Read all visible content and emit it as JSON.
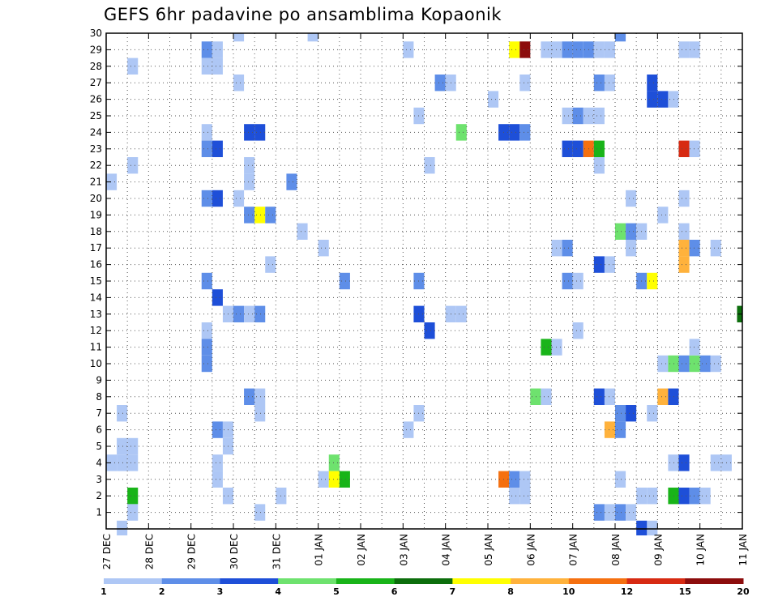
{
  "chart_data": {
    "type": "heatmap",
    "title": "GEFS 6hr padavine po ansamblima Kopaonik",
    "x_tick_labels": [
      "27 DEC",
      "28 DEC",
      "29 DEC",
      "30 DEC",
      "31 DEC",
      "01 JAN",
      "02 JAN",
      "03 JAN",
      "04 JAN",
      "05 JAN",
      "06 JAN",
      "07 JAN",
      "08 JAN",
      "09 JAN",
      "10 JAN",
      "11 JAN"
    ],
    "y_tick_labels": [
      "1",
      "2",
      "3",
      "4",
      "5",
      "6",
      "7",
      "8",
      "9",
      "10",
      "11",
      "12",
      "13",
      "14",
      "15",
      "16",
      "17",
      "18",
      "19",
      "20",
      "21",
      "22",
      "23",
      "24",
      "25",
      "26",
      "27",
      "28",
      "29",
      "30"
    ],
    "x_range_steps": [
      0,
      60
    ],
    "y_range_members": [
      0,
      30
    ],
    "colorbar": {
      "labels": [
        "1",
        "2",
        "3",
        "4",
        "5",
        "6",
        "7",
        "8",
        "10",
        "12",
        "15",
        "20"
      ],
      "colors": [
        "#aec7f5",
        "#5e8ee8",
        "#1e4fd8",
        "#6ee26e",
        "#19b419",
        "#0c6e0c",
        "#ffff00",
        "#ffb23c",
        "#f57010",
        "#d72a12",
        "#8c0c0c"
      ]
    },
    "cells": [
      {
        "x": 1.5,
        "y": 0,
        "c": 1
      },
      {
        "x": 0.5,
        "y": 4,
        "c": 1
      },
      {
        "x": 1.5,
        "y": 4,
        "c": 1
      },
      {
        "x": 1.5,
        "y": 5,
        "c": 1
      },
      {
        "x": 2.5,
        "y": 4,
        "c": 1
      },
      {
        "x": 2.5,
        "y": 5,
        "c": 1
      },
      {
        "x": 2.5,
        "y": 2,
        "c": 5
      },
      {
        "x": 2.5,
        "y": 1,
        "c": 1
      },
      {
        "x": 1.5,
        "y": 7,
        "c": 1
      },
      {
        "x": 2.5,
        "y": 28,
        "c": 1
      },
      {
        "x": 2.5,
        "y": 22,
        "c": 1
      },
      {
        "x": 0.5,
        "y": 21,
        "c": 1
      },
      {
        "x": 9.5,
        "y": 29,
        "c": 2
      },
      {
        "x": 10.5,
        "y": 29,
        "c": 1
      },
      {
        "x": 9.5,
        "y": 28,
        "c": 1
      },
      {
        "x": 10.5,
        "y": 28,
        "c": 1
      },
      {
        "x": 9.5,
        "y": 24,
        "c": 1
      },
      {
        "x": 9.5,
        "y": 23,
        "c": 2
      },
      {
        "x": 10.5,
        "y": 23,
        "c": 3
      },
      {
        "x": 9.5,
        "y": 20,
        "c": 2
      },
      {
        "x": 10.5,
        "y": 20,
        "c": 3
      },
      {
        "x": 9.5,
        "y": 15,
        "c": 2
      },
      {
        "x": 10.5,
        "y": 14,
        "c": 3
      },
      {
        "x": 9.5,
        "y": 12,
        "c": 1
      },
      {
        "x": 9.5,
        "y": 11,
        "c": 2
      },
      {
        "x": 9.5,
        "y": 10,
        "c": 2
      },
      {
        "x": 10.5,
        "y": 6,
        "c": 2
      },
      {
        "x": 11.5,
        "y": 6,
        "c": 1
      },
      {
        "x": 11.5,
        "y": 5,
        "c": 1
      },
      {
        "x": 10.5,
        "y": 4,
        "c": 1
      },
      {
        "x": 10.5,
        "y": 3,
        "c": 1
      },
      {
        "x": 11.5,
        "y": 2,
        "c": 1
      },
      {
        "x": 12.5,
        "y": 30,
        "c": 1
      },
      {
        "x": 12.5,
        "y": 27,
        "c": 1
      },
      {
        "x": 13.5,
        "y": 24,
        "c": 3
      },
      {
        "x": 14.5,
        "y": 24,
        "c": 3
      },
      {
        "x": 13.5,
        "y": 22,
        "c": 1
      },
      {
        "x": 13.5,
        "y": 21,
        "c": 1
      },
      {
        "x": 12.5,
        "y": 20,
        "c": 1
      },
      {
        "x": 13.5,
        "y": 19,
        "c": 2
      },
      {
        "x": 14.5,
        "y": 19,
        "c": 7
      },
      {
        "x": 15.5,
        "y": 19,
        "c": 2
      },
      {
        "x": 15.5,
        "y": 16,
        "c": 1
      },
      {
        "x": 11.5,
        "y": 13,
        "c": 1
      },
      {
        "x": 12.5,
        "y": 13,
        "c": 2
      },
      {
        "x": 13.5,
        "y": 13,
        "c": 1
      },
      {
        "x": 14.5,
        "y": 13,
        "c": 2
      },
      {
        "x": 13.5,
        "y": 8,
        "c": 2
      },
      {
        "x": 14.5,
        "y": 8,
        "c": 1
      },
      {
        "x": 14.5,
        "y": 7,
        "c": 1
      },
      {
        "x": 14.5,
        "y": 1,
        "c": 1
      },
      {
        "x": 17.5,
        "y": 21,
        "c": 2
      },
      {
        "x": 16.5,
        "y": 2,
        "c": 1
      },
      {
        "x": 19.5,
        "y": 30,
        "c": 1
      },
      {
        "x": 18.5,
        "y": 18,
        "c": 1
      },
      {
        "x": 20.5,
        "y": 17,
        "c": 1
      },
      {
        "x": 22.5,
        "y": 15,
        "c": 2
      },
      {
        "x": 21.5,
        "y": 4,
        "c": 4
      },
      {
        "x": 20.5,
        "y": 3,
        "c": 1
      },
      {
        "x": 21.5,
        "y": 3,
        "c": 7
      },
      {
        "x": 22.5,
        "y": 3,
        "c": 5
      },
      {
        "x": 28.5,
        "y": 29,
        "c": 1
      },
      {
        "x": 31.5,
        "y": 27,
        "c": 2
      },
      {
        "x": 32.5,
        "y": 27,
        "c": 1
      },
      {
        "x": 29.5,
        "y": 25,
        "c": 1
      },
      {
        "x": 30.5,
        "y": 22,
        "c": 1
      },
      {
        "x": 33.5,
        "y": 24,
        "c": 4
      },
      {
        "x": 29.5,
        "y": 15,
        "c": 2
      },
      {
        "x": 29.5,
        "y": 13,
        "c": 3
      },
      {
        "x": 30.5,
        "y": 12,
        "c": 3
      },
      {
        "x": 32.5,
        "y": 13,
        "c": 1
      },
      {
        "x": 33.5,
        "y": 13,
        "c": 1
      },
      {
        "x": 29.5,
        "y": 7,
        "c": 1
      },
      {
        "x": 28.5,
        "y": 6,
        "c": 1
      },
      {
        "x": 36.5,
        "y": 26,
        "c": 1
      },
      {
        "x": 38.5,
        "y": 29,
        "c": 7
      },
      {
        "x": 39.5,
        "y": 29,
        "c": 11
      },
      {
        "x": 39.5,
        "y": 27,
        "c": 1
      },
      {
        "x": 37.5,
        "y": 24,
        "c": 3
      },
      {
        "x": 38.5,
        "y": 24,
        "c": 3
      },
      {
        "x": 39.5,
        "y": 24,
        "c": 2
      },
      {
        "x": 37.5,
        "y": 3,
        "c": 9
      },
      {
        "x": 38.5,
        "y": 3,
        "c": 2
      },
      {
        "x": 39.5,
        "y": 3,
        "c": 1
      },
      {
        "x": 38.5,
        "y": 2,
        "c": 1
      },
      {
        "x": 39.5,
        "y": 2,
        "c": 1
      },
      {
        "x": 40.5,
        "y": 8,
        "c": 4
      },
      {
        "x": 41.5,
        "y": 8,
        "c": 1
      },
      {
        "x": 41.5,
        "y": 11,
        "c": 5
      },
      {
        "x": 42.5,
        "y": 11,
        "c": 1
      },
      {
        "x": 41.5,
        "y": 29,
        "c": 1
      },
      {
        "x": 42.5,
        "y": 29,
        "c": 1
      },
      {
        "x": 43.5,
        "y": 29,
        "c": 2
      },
      {
        "x": 44.5,
        "y": 29,
        "c": 2
      },
      {
        "x": 45.5,
        "y": 29,
        "c": 2
      },
      {
        "x": 46.5,
        "y": 29,
        "c": 1
      },
      {
        "x": 47.5,
        "y": 29,
        "c": 1
      },
      {
        "x": 43.5,
        "y": 25,
        "c": 1
      },
      {
        "x": 44.5,
        "y": 25,
        "c": 2
      },
      {
        "x": 45.5,
        "y": 25,
        "c": 1
      },
      {
        "x": 46.5,
        "y": 25,
        "c": 1
      },
      {
        "x": 43.5,
        "y": 23,
        "c": 3
      },
      {
        "x": 44.5,
        "y": 23,
        "c": 3
      },
      {
        "x": 45.5,
        "y": 23,
        "c": 9
      },
      {
        "x": 46.5,
        "y": 23,
        "c": 5
      },
      {
        "x": 46.5,
        "y": 22,
        "c": 1
      },
      {
        "x": 46.5,
        "y": 27,
        "c": 2
      },
      {
        "x": 47.5,
        "y": 27,
        "c": 1
      },
      {
        "x": 42.5,
        "y": 17,
        "c": 1
      },
      {
        "x": 43.5,
        "y": 17,
        "c": 2
      },
      {
        "x": 46.5,
        "y": 16,
        "c": 3
      },
      {
        "x": 47.5,
        "y": 16,
        "c": 1
      },
      {
        "x": 43.5,
        "y": 15,
        "c": 2
      },
      {
        "x": 44.5,
        "y": 15,
        "c": 1
      },
      {
        "x": 44.5,
        "y": 12,
        "c": 1
      },
      {
        "x": 46.5,
        "y": 8,
        "c": 3
      },
      {
        "x": 47.5,
        "y": 8,
        "c": 1
      },
      {
        "x": 46.5,
        "y": 1,
        "c": 2
      },
      {
        "x": 47.5,
        "y": 1,
        "c": 1
      },
      {
        "x": 48.5,
        "y": 1,
        "c": 2
      },
      {
        "x": 49.5,
        "y": 1,
        "c": 1
      },
      {
        "x": 47.5,
        "y": 6,
        "c": 8
      },
      {
        "x": 48.5,
        "y": 6,
        "c": 2
      },
      {
        "x": 48.5,
        "y": 7,
        "c": 2
      },
      {
        "x": 49.5,
        "y": 7,
        "c": 3
      },
      {
        "x": 48.5,
        "y": 3,
        "c": 1
      },
      {
        "x": 48.5,
        "y": 18,
        "c": 4
      },
      {
        "x": 49.5,
        "y": 18,
        "c": 2
      },
      {
        "x": 50.5,
        "y": 18,
        "c": 1
      },
      {
        "x": 49.5,
        "y": 17,
        "c": 1
      },
      {
        "x": 49.5,
        "y": 20,
        "c": 1
      },
      {
        "x": 48.5,
        "y": 30,
        "c": 2
      },
      {
        "x": 51.5,
        "y": 27,
        "c": 3
      },
      {
        "x": 51.5,
        "y": 26,
        "c": 3
      },
      {
        "x": 52.5,
        "y": 26,
        "c": 3
      },
      {
        "x": 53.5,
        "y": 26,
        "c": 1
      },
      {
        "x": 50.5,
        "y": 15,
        "c": 2
      },
      {
        "x": 51.5,
        "y": 15,
        "c": 7
      },
      {
        "x": 52.5,
        "y": 19,
        "c": 1
      },
      {
        "x": 54.5,
        "y": 20,
        "c": 1
      },
      {
        "x": 54.5,
        "y": 18,
        "c": 1
      },
      {
        "x": 54.5,
        "y": 17,
        "c": 8
      },
      {
        "x": 54.5,
        "y": 16,
        "c": 8
      },
      {
        "x": 55.5,
        "y": 17,
        "c": 2
      },
      {
        "x": 57.5,
        "y": 17,
        "c": 1
      },
      {
        "x": 54.5,
        "y": 23,
        "c": 10
      },
      {
        "x": 55.5,
        "y": 23,
        "c": 1
      },
      {
        "x": 54.5,
        "y": 29,
        "c": 1
      },
      {
        "x": 55.5,
        "y": 29,
        "c": 1
      },
      {
        "x": 52.5,
        "y": 10,
        "c": 1
      },
      {
        "x": 53.5,
        "y": 10,
        "c": 4
      },
      {
        "x": 54.5,
        "y": 10,
        "c": 2
      },
      {
        "x": 55.5,
        "y": 10,
        "c": 4
      },
      {
        "x": 56.5,
        "y": 10,
        "c": 2
      },
      {
        "x": 57.5,
        "y": 10,
        "c": 1
      },
      {
        "x": 55.5,
        "y": 11,
        "c": 1
      },
      {
        "x": 60.0,
        "y": 13,
        "c": 6
      },
      {
        "x": 52.5,
        "y": 8,
        "c": 8
      },
      {
        "x": 53.5,
        "y": 8,
        "c": 3
      },
      {
        "x": 51.5,
        "y": 7,
        "c": 1
      },
      {
        "x": 53.5,
        "y": 4,
        "c": 1
      },
      {
        "x": 54.5,
        "y": 4,
        "c": 3
      },
      {
        "x": 57.5,
        "y": 4,
        "c": 1
      },
      {
        "x": 58.5,
        "y": 4,
        "c": 1
      },
      {
        "x": 50.5,
        "y": 2,
        "c": 1
      },
      {
        "x": 51.5,
        "y": 2,
        "c": 1
      },
      {
        "x": 53.5,
        "y": 2,
        "c": 5
      },
      {
        "x": 54.5,
        "y": 2,
        "c": 3
      },
      {
        "x": 55.5,
        "y": 2,
        "c": 2
      },
      {
        "x": 56.5,
        "y": 2,
        "c": 1
      },
      {
        "x": 51.5,
        "y": 0,
        "c": 1
      },
      {
        "x": 50.5,
        "y": 0,
        "c": 3
      }
    ]
  }
}
